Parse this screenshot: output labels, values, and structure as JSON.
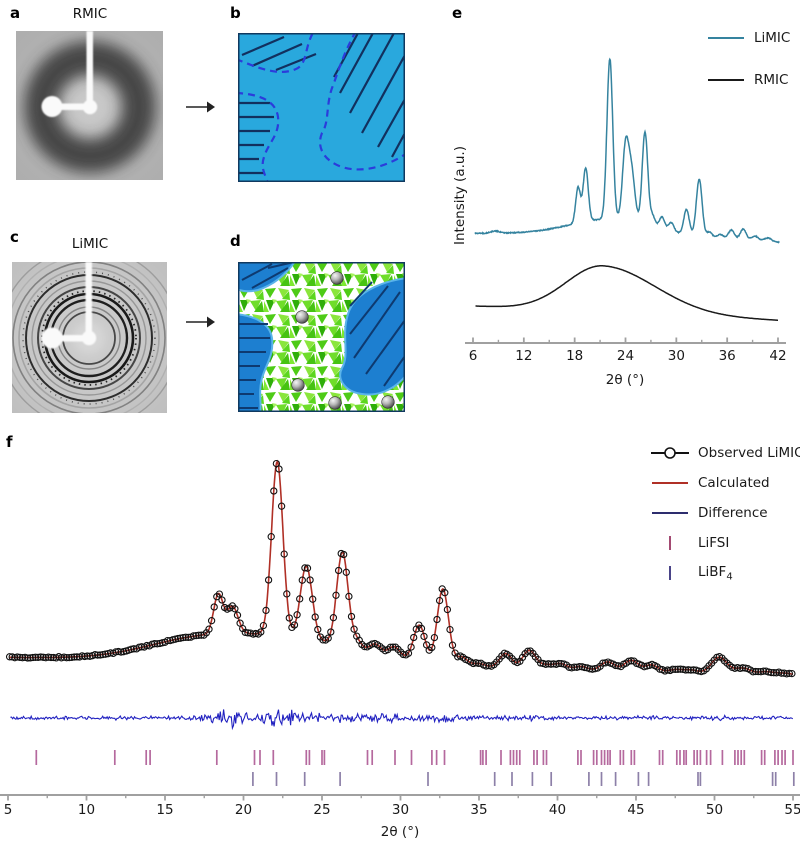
{
  "panels": {
    "a": {
      "label": "a",
      "title": "RMIC",
      "image": "2d-waxs-diffuse-halo"
    },
    "b": {
      "label": "b",
      "image": "schematic-polymer-domains-amorphous-matrix"
    },
    "c": {
      "label": "c",
      "title": "LiMIC",
      "image": "2d-waxs-sharp-rings"
    },
    "d": {
      "label": "d",
      "image": "schematic-polymer-domains-crystalline-channels-li-ions"
    },
    "e": {
      "label": "e"
    },
    "f": {
      "label": "f"
    }
  },
  "colors": {
    "limic_curve": "#35839f",
    "rmic_curve": "#1a1a1a",
    "observed": "#111111",
    "calculated": "#b03026",
    "difference": "#2121c0",
    "difference_legend": "#2d2d6e",
    "lifsi_ticks": "#b5699e",
    "libf4_ticks": "#8d80a8",
    "axis": "#a0a0a0",
    "schematic_bg": "#29a8dd",
    "schematic_dash": "#2b3cdb",
    "schematic_hatch": "#12305e",
    "domain_blue": "#1d7fd0"
  },
  "chart_data": [
    {
      "id": "panel-e",
      "type": "line",
      "xlabel": "2θ (°)",
      "ylabel": "Intensity (a.u.)",
      "x_range": [
        6,
        42
      ],
      "x_major_ticks": [
        6,
        12,
        18,
        24,
        30,
        36,
        42
      ],
      "x_minor_ticks": [
        9,
        15,
        21,
        27,
        33,
        39
      ],
      "grid": false,
      "legend_position": "top-right",
      "legend": [
        {
          "label": "LiMIC",
          "marker": "line",
          "color": "#35839f"
        },
        {
          "label": "RMIC",
          "marker": "line",
          "color": "#1a1a1a"
        }
      ],
      "series": [
        {
          "name": "LiMIC",
          "color": "#35839f",
          "style": "sharp Bragg peaks over weak amorphous background",
          "background_humps": [
            [
              22,
              8,
              4.5
            ]
          ],
          "baseline": 1.5,
          "peaks": [
            [
              8.6,
              1.2,
              0.5
            ],
            [
              18.4,
              20,
              0.28
            ],
            [
              19.3,
              30,
              0.3
            ],
            [
              22.15,
              90,
              0.34
            ],
            [
              24.0,
              40,
              0.36
            ],
            [
              24.7,
              28,
              0.4
            ],
            [
              26.3,
              52,
              0.33
            ],
            [
              27.2,
              6,
              0.3
            ],
            [
              28.3,
              7,
              0.32
            ],
            [
              29.4,
              5,
              0.32
            ],
            [
              31.2,
              14,
              0.32
            ],
            [
              32.7,
              32,
              0.34
            ],
            [
              33.9,
              3,
              0.32
            ],
            [
              35.2,
              2,
              0.35
            ],
            [
              36.5,
              5,
              0.35
            ],
            [
              37.9,
              6,
              0.35
            ],
            [
              39.3,
              2.5,
              0.4
            ],
            [
              40.8,
              2,
              0.4
            ]
          ]
        },
        {
          "name": "RMIC",
          "color": "#1a1a1a",
          "style": "single broad amorphous halo",
          "halo": {
            "center": 21.3,
            "amplitude": 26,
            "sigma_left": 4.3,
            "sigma_right": 6.2
          }
        }
      ]
    },
    {
      "id": "panel-f",
      "type": "line",
      "xlabel": "2θ (°)",
      "x_range": [
        5,
        55
      ],
      "x_major_ticks": [
        5,
        10,
        15,
        20,
        25,
        30,
        35,
        40,
        45,
        50,
        55
      ],
      "x_minor_ticks": [
        7.5,
        12.5,
        17.5,
        22.5,
        27.5,
        32.5,
        37.5,
        42.5,
        47.5,
        52.5
      ],
      "grid": false,
      "legend": [
        {
          "label": "Observed LiMIC",
          "marker": "line-circle",
          "color": "#111111"
        },
        {
          "label": "Calculated",
          "marker": "line",
          "color": "#b03026"
        },
        {
          "label": "Difference",
          "marker": "line",
          "color": "#2d2d6e"
        },
        {
          "label": "LiFSI",
          "marker": "tick",
          "color": "#a34a72"
        },
        {
          "label": "LiBF",
          "label_sub": "4",
          "marker": "tick",
          "color": "#4a4488"
        }
      ],
      "series": [
        {
          "name": "Observed LiMIC",
          "marker": "circle",
          "color": "#111111",
          "background_humps": [
            [
              22,
              13,
              5.5
            ],
            [
              16.5,
              4,
              3
            ]
          ],
          "baseline": 1.2,
          "peaks": [
            [
              18.4,
              19,
              0.3
            ],
            [
              19.3,
              13,
              0.35
            ],
            [
              22.15,
              84,
              0.36
            ],
            [
              24.0,
              35,
              0.38
            ],
            [
              26.3,
              45,
              0.36
            ],
            [
              27.2,
              4,
              0.3
            ],
            [
              28.4,
              4,
              0.35
            ],
            [
              29.6,
              4.5,
              0.35
            ],
            [
              31.2,
              17,
              0.36
            ],
            [
              32.7,
              36,
              0.36
            ],
            [
              33.9,
              4,
              0.35
            ],
            [
              35.0,
              1.5,
              0.4
            ],
            [
              36.7,
              7,
              0.4
            ],
            [
              38.2,
              9,
              0.42
            ],
            [
              39.3,
              2,
              0.4
            ],
            [
              40.2,
              3,
              0.42
            ],
            [
              41.5,
              2,
              0.42
            ],
            [
              43.2,
              4.5,
              0.45
            ],
            [
              44.7,
              5.5,
              0.45
            ],
            [
              46.0,
              3.5,
              0.42
            ],
            [
              47.5,
              1.5,
              0.45
            ],
            [
              48.5,
              1.5,
              0.45
            ],
            [
              50.3,
              8,
              0.5
            ],
            [
              51.8,
              3,
              0.5
            ],
            [
              53.3,
              1.5,
              0.5
            ],
            [
              54.5,
              1,
              0.5
            ]
          ]
        },
        {
          "name": "Calculated",
          "marker": "none",
          "color": "#b03026",
          "note": "same profile as observed (Rietveld fit)"
        },
        {
          "name": "Difference",
          "marker": "none",
          "color": "#2121c0",
          "amplitude_envelope": [
            [
              5,
              2
            ],
            [
              9,
              2
            ],
            [
              13,
              2.2
            ],
            [
              16,
              2.6
            ],
            [
              17.8,
              3.5
            ],
            [
              18.6,
              9
            ],
            [
              19.1,
              13
            ],
            [
              19.6,
              8
            ],
            [
              20.3,
              5
            ],
            [
              21.0,
              9
            ],
            [
              21.6,
              12
            ],
            [
              22.3,
              13
            ],
            [
              22.9,
              11
            ],
            [
              23.4,
              8
            ],
            [
              24.1,
              9
            ],
            [
              24.8,
              6
            ],
            [
              25.5,
              4
            ],
            [
              26.3,
              8
            ],
            [
              27.0,
              5
            ],
            [
              27.8,
              4
            ],
            [
              28.6,
              5
            ],
            [
              29.4,
              5
            ],
            [
              30.2,
              3.5
            ],
            [
              31.0,
              4.5
            ],
            [
              31.9,
              4
            ],
            [
              32.7,
              9
            ],
            [
              33.3,
              5
            ],
            [
              34.0,
              3
            ],
            [
              34.8,
              2.8
            ],
            [
              36.0,
              2.5
            ],
            [
              36.7,
              3.5
            ],
            [
              37.6,
              2.5
            ],
            [
              38.4,
              3.5
            ],
            [
              39.2,
              2.5
            ],
            [
              40.5,
              2
            ],
            [
              42,
              1.8
            ],
            [
              43.3,
              2.2
            ],
            [
              44.7,
              2.5
            ],
            [
              46.1,
              2.5
            ],
            [
              47.3,
              2
            ],
            [
              48.4,
              2
            ],
            [
              49.3,
              2
            ],
            [
              50.4,
              3
            ],
            [
              51.3,
              2.2
            ],
            [
              52.2,
              2.5
            ],
            [
              53.3,
              2
            ],
            [
              54.2,
              2
            ],
            [
              55,
              1.8
            ]
          ]
        }
      ],
      "tick_rows": [
        {
          "name": "LiFSI",
          "color": "#b5699e",
          "positions": [
            6.8,
            11.8,
            13.8,
            14.05,
            18.3,
            20.7,
            21.05,
            21.9,
            24.0,
            24.2,
            25.0,
            25.15,
            27.9,
            28.2,
            29.65,
            30.7,
            32.0,
            32.3,
            32.8,
            35.1,
            35.25,
            35.45,
            36.4,
            37.0,
            37.2,
            37.4,
            37.6,
            38.5,
            38.7,
            39.1,
            39.3,
            41.3,
            41.5,
            42.3,
            42.5,
            42.8,
            43.0,
            43.2,
            43.35,
            44.0,
            44.2,
            44.7,
            44.9,
            46.5,
            46.7,
            47.6,
            47.8,
            48.05,
            48.2,
            48.7,
            48.9,
            49.1,
            49.5,
            49.75,
            50.5,
            51.3,
            51.5,
            51.7,
            51.9,
            53.0,
            53.2,
            53.85,
            54.05,
            54.3,
            54.5,
            55.0
          ]
        },
        {
          "name": "LiBF4",
          "color": "#8d80a8",
          "positions": [
            20.6,
            22.1,
            23.9,
            26.15,
            31.75,
            36.0,
            37.1,
            38.4,
            39.6,
            42.0,
            42.8,
            43.7,
            45.15,
            45.8,
            48.95,
            49.1,
            53.7,
            53.9,
            55.05
          ]
        }
      ]
    }
  ]
}
